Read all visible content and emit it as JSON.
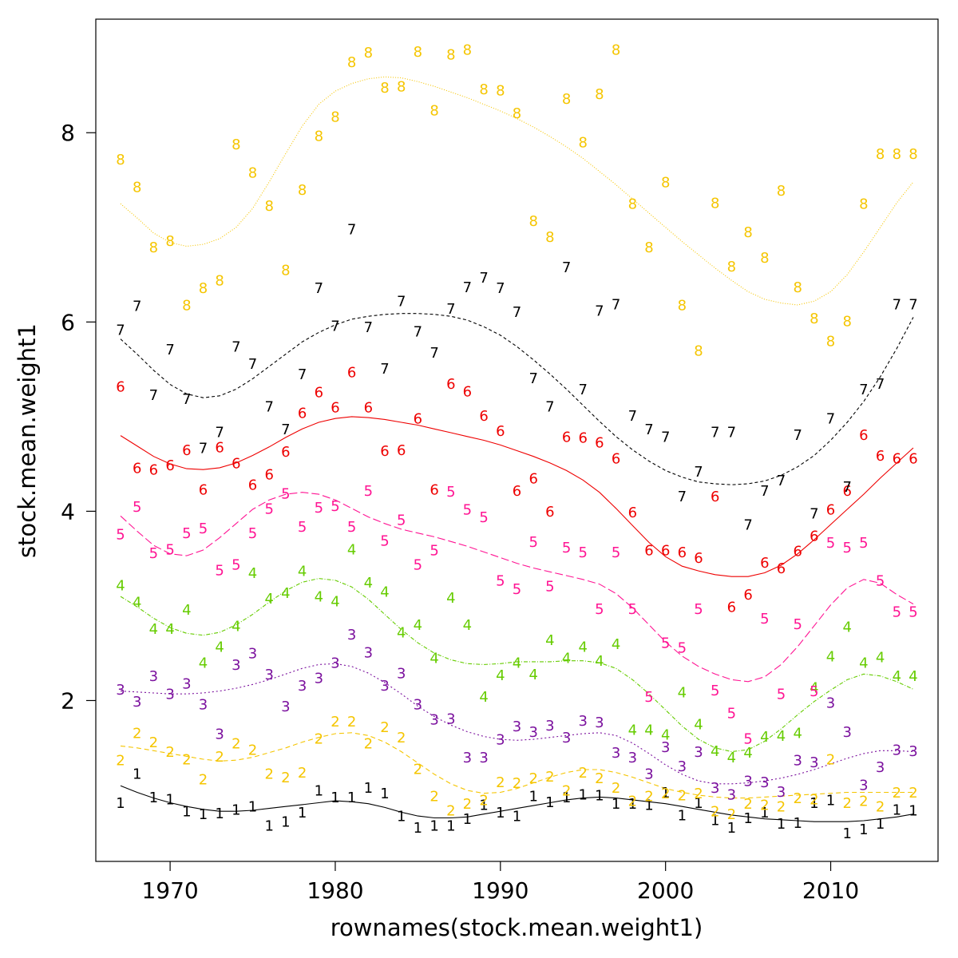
{
  "chart_data": {
    "type": "scatter",
    "xlabel": "rownames(stock.mean.weight1)",
    "ylabel": "stock.mean.weight1",
    "xlim": [
      1965.5,
      2016.5
    ],
    "ylim": [
      0.3,
      9.2
    ],
    "xticks": [
      1970,
      1980,
      1990,
      2000,
      2010
    ],
    "yticks": [
      2,
      4,
      6,
      8
    ],
    "grid": false,
    "legend": "none",
    "x": [
      1967,
      1968,
      1969,
      1970,
      1971,
      1972,
      1973,
      1974,
      1975,
      1976,
      1977,
      1978,
      1979,
      1980,
      1981,
      1982,
      1983,
      1984,
      1985,
      1986,
      1987,
      1988,
      1989,
      1990,
      1991,
      1992,
      1993,
      1994,
      1995,
      1996,
      1997,
      1998,
      1999,
      2000,
      2001,
      2002,
      2003,
      2004,
      2005,
      2006,
      2007,
      2008,
      2009,
      2010,
      2011,
      2012,
      2013,
      2014,
      2015
    ],
    "series": [
      {
        "name": "1",
        "color": "#000000",
        "dash": "",
        "values": [
          0.92,
          1.23,
          0.98,
          0.96,
          0.83,
          0.8,
          0.81,
          0.85,
          0.88,
          0.68,
          0.72,
          0.82,
          1.05,
          0.98,
          0.98,
          1.08,
          1.02,
          0.78,
          0.66,
          0.68,
          0.68,
          0.75,
          0.9,
          0.82,
          0.78,
          0.99,
          0.93,
          0.98,
          1.01,
          1.0,
          0.91,
          0.91,
          0.9,
          1.03,
          0.79,
          0.92,
          0.74,
          0.66,
          0.76,
          0.82,
          0.7,
          0.71,
          0.92,
          0.95,
          0.6,
          0.64,
          0.7,
          0.85,
          0.84
        ],
        "smooth": [
          1.1,
          1.03,
          0.97,
          0.92,
          0.88,
          0.85,
          0.83,
          0.83,
          0.84,
          0.86,
          0.88,
          0.9,
          0.92,
          0.94,
          0.93,
          0.91,
          0.87,
          0.82,
          0.78,
          0.76,
          0.76,
          0.77,
          0.8,
          0.83,
          0.86,
          0.89,
          0.92,
          0.95,
          0.97,
          0.98,
          0.97,
          0.95,
          0.93,
          0.91,
          0.88,
          0.85,
          0.82,
          0.79,
          0.77,
          0.75,
          0.74,
          0.73,
          0.72,
          0.72,
          0.72,
          0.73,
          0.75,
          0.77,
          0.8
        ]
      },
      {
        "name": "2",
        "color": "#f5c500",
        "dash": "6,4",
        "values": [
          1.37,
          1.66,
          1.56,
          1.46,
          1.38,
          1.17,
          1.41,
          1.55,
          1.48,
          1.23,
          1.19,
          1.24,
          1.6,
          1.78,
          1.78,
          1.55,
          1.72,
          1.61,
          1.28,
          0.99,
          0.84,
          0.91,
          0.95,
          1.14,
          1.13,
          1.18,
          1.2,
          1.05,
          1.24,
          1.18,
          1.08,
          0.94,
          0.99,
          1.02,
          1.0,
          1.02,
          0.83,
          0.8,
          0.91,
          0.9,
          0.88,
          0.97,
          0.96,
          1.38,
          0.92,
          0.94,
          0.88,
          1.03,
          1.03
        ],
        "smooth": [
          1.52,
          1.5,
          1.47,
          1.44,
          1.41,
          1.38,
          1.36,
          1.37,
          1.4,
          1.45,
          1.5,
          1.56,
          1.61,
          1.65,
          1.66,
          1.63,
          1.56,
          1.46,
          1.34,
          1.22,
          1.12,
          1.05,
          1.02,
          1.03,
          1.07,
          1.13,
          1.19,
          1.24,
          1.27,
          1.27,
          1.24,
          1.19,
          1.13,
          1.07,
          1.03,
          1.0,
          0.98,
          0.97,
          0.97,
          0.98,
          0.99,
          1.0,
          1.01,
          1.02,
          1.03,
          1.03,
          1.03,
          1.03,
          1.03
        ]
      },
      {
        "name": "3",
        "color": "#7b119e",
        "dash": "2,3",
        "values": [
          2.12,
          1.99,
          2.26,
          2.07,
          2.18,
          1.96,
          1.65,
          2.38,
          2.5,
          2.28,
          1.94,
          2.16,
          2.24,
          2.4,
          2.7,
          2.51,
          2.16,
          2.29,
          1.96,
          1.8,
          1.81,
          1.4,
          1.4,
          1.59,
          1.73,
          1.67,
          1.74,
          1.61,
          1.79,
          1.77,
          1.45,
          1.4,
          1.23,
          1.51,
          1.31,
          1.46,
          1.08,
          1.01,
          1.15,
          1.14,
          1.04,
          1.37,
          1.35,
          1.98,
          1.67,
          1.11,
          1.3,
          1.48,
          1.47
        ],
        "smooth": [
          2.1,
          2.09,
          2.08,
          2.07,
          2.07,
          2.08,
          2.1,
          2.13,
          2.17,
          2.22,
          2.28,
          2.34,
          2.38,
          2.39,
          2.36,
          2.29,
          2.19,
          2.07,
          1.94,
          1.83,
          1.74,
          1.67,
          1.62,
          1.59,
          1.58,
          1.59,
          1.61,
          1.63,
          1.65,
          1.66,
          1.63,
          1.55,
          1.44,
          1.32,
          1.22,
          1.15,
          1.12,
          1.12,
          1.13,
          1.15,
          1.18,
          1.22,
          1.27,
          1.33,
          1.39,
          1.44,
          1.47,
          1.47,
          1.46
        ]
      },
      {
        "name": "4",
        "color": "#66cc00",
        "dash": "5,2,1,2",
        "values": [
          3.22,
          3.04,
          2.76,
          2.76,
          2.96,
          2.4,
          2.57,
          2.79,
          3.35,
          3.08,
          3.14,
          3.37,
          3.1,
          3.05,
          3.6,
          3.25,
          3.15,
          2.72,
          2.8,
          2.45,
          3.09,
          2.8,
          2.04,
          2.27,
          2.4,
          2.28,
          2.64,
          2.45,
          2.57,
          2.42,
          2.6,
          1.69,
          1.69,
          1.64,
          2.09,
          1.75,
          1.47,
          1.4,
          1.45,
          1.62,
          1.63,
          1.66,
          2.14,
          2.47,
          2.78,
          2.4,
          2.46,
          2.26,
          2.26
        ],
        "smooth": [
          3.1,
          2.99,
          2.87,
          2.77,
          2.71,
          2.69,
          2.72,
          2.8,
          2.91,
          3.04,
          3.16,
          3.25,
          3.29,
          3.27,
          3.2,
          3.07,
          2.91,
          2.75,
          2.61,
          2.5,
          2.43,
          2.39,
          2.38,
          2.39,
          2.41,
          2.41,
          2.41,
          2.42,
          2.42,
          2.4,
          2.34,
          2.22,
          2.07,
          1.9,
          1.73,
          1.59,
          1.5,
          1.46,
          1.48,
          1.57,
          1.7,
          1.85,
          1.99,
          2.11,
          2.22,
          2.28,
          2.26,
          2.2,
          2.12
        ]
      },
      {
        "name": "5",
        "color": "#ff1493",
        "dash": "10,4",
        "values": [
          3.76,
          4.05,
          3.56,
          3.6,
          3.77,
          3.82,
          3.38,
          3.44,
          3.77,
          4.03,
          4.19,
          3.84,
          4.04,
          4.06,
          3.84,
          4.22,
          3.69,
          3.91,
          3.44,
          3.59,
          4.21,
          4.02,
          3.94,
          3.27,
          3.18,
          3.68,
          3.21,
          3.62,
          3.57,
          2.97,
          3.57,
          2.97,
          2.04,
          2.61,
          2.56,
          2.97,
          2.11,
          1.87,
          1.6,
          2.87,
          2.07,
          2.81,
          2.1,
          3.67,
          3.62,
          3.67,
          3.27,
          2.94,
          2.94
        ],
        "smooth": [
          3.95,
          3.79,
          3.64,
          3.55,
          3.53,
          3.59,
          3.72,
          3.87,
          4.02,
          4.12,
          4.18,
          4.2,
          4.18,
          4.12,
          4.03,
          3.94,
          3.87,
          3.81,
          3.77,
          3.73,
          3.68,
          3.63,
          3.57,
          3.51,
          3.45,
          3.4,
          3.36,
          3.32,
          3.28,
          3.23,
          3.13,
          2.98,
          2.8,
          2.62,
          2.47,
          2.36,
          2.28,
          2.22,
          2.2,
          2.25,
          2.38,
          2.57,
          2.79,
          3.01,
          3.19,
          3.28,
          3.24,
          3.12,
          3.02
        ]
      },
      {
        "name": "6",
        "color": "#ee0000",
        "dash": "",
        "values": [
          5.32,
          4.46,
          4.44,
          4.49,
          4.65,
          4.23,
          4.68,
          4.51,
          4.28,
          4.39,
          4.63,
          5.04,
          5.26,
          5.1,
          5.47,
          5.1,
          4.64,
          4.65,
          4.98,
          4.23,
          5.35,
          5.27,
          5.01,
          4.85,
          4.22,
          4.35,
          4.0,
          4.79,
          4.78,
          4.73,
          4.56,
          3.99,
          3.59,
          3.59,
          3.57,
          3.51,
          4.16,
          2.99,
          3.12,
          3.46,
          3.4,
          3.58,
          3.74,
          4.02,
          4.22,
          4.81,
          4.59,
          4.56,
          4.56
        ],
        "smooth": [
          4.8,
          4.69,
          4.58,
          4.5,
          4.45,
          4.44,
          4.46,
          4.51,
          4.59,
          4.68,
          4.78,
          4.87,
          4.94,
          4.98,
          5.0,
          4.99,
          4.97,
          4.94,
          4.91,
          4.87,
          4.83,
          4.79,
          4.75,
          4.7,
          4.64,
          4.58,
          4.51,
          4.43,
          4.33,
          4.2,
          4.03,
          3.85,
          3.67,
          3.52,
          3.42,
          3.37,
          3.33,
          3.31,
          3.31,
          3.35,
          3.43,
          3.55,
          3.7,
          3.86,
          4.02,
          4.18,
          4.35,
          4.51,
          4.67
        ]
      },
      {
        "name": "7",
        "color": "#000000",
        "dash": "4,3",
        "values": [
          5.92,
          6.17,
          5.23,
          5.71,
          5.19,
          4.67,
          4.84,
          5.74,
          5.56,
          5.11,
          4.87,
          5.45,
          6.36,
          5.96,
          6.98,
          5.95,
          5.51,
          6.22,
          5.9,
          5.68,
          6.14,
          6.37,
          6.47,
          6.36,
          6.11,
          5.41,
          5.11,
          6.58,
          5.29,
          6.12,
          6.19,
          5.01,
          4.87,
          4.79,
          4.16,
          4.42,
          4.84,
          4.84,
          3.86,
          4.22,
          4.33,
          4.81,
          3.98,
          4.98,
          4.26,
          5.29,
          5.35,
          6.19,
          6.19
        ],
        "smooth": [
          5.82,
          5.66,
          5.49,
          5.34,
          5.24,
          5.2,
          5.22,
          5.29,
          5.4,
          5.53,
          5.66,
          5.79,
          5.89,
          5.97,
          6.03,
          6.06,
          6.08,
          6.09,
          6.09,
          6.08,
          6.06,
          6.02,
          5.95,
          5.86,
          5.74,
          5.6,
          5.45,
          5.29,
          5.12,
          4.95,
          4.79,
          4.65,
          4.53,
          4.43,
          4.36,
          4.31,
          4.29,
          4.28,
          4.29,
          4.32,
          4.38,
          4.47,
          4.59,
          4.75,
          4.94,
          5.16,
          5.42,
          5.72,
          6.05
        ]
      },
      {
        "name": "8",
        "color": "#f5c500",
        "dash": "1,2",
        "values": [
          7.72,
          7.43,
          6.79,
          6.86,
          6.18,
          6.36,
          6.44,
          7.88,
          7.58,
          7.23,
          6.55,
          7.4,
          7.97,
          8.17,
          8.75,
          8.85,
          8.48,
          8.49,
          8.86,
          8.24,
          8.83,
          8.88,
          8.46,
          8.45,
          8.21,
          7.07,
          6.9,
          8.36,
          7.9,
          8.41,
          8.88,
          7.25,
          6.79,
          7.48,
          6.18,
          5.7,
          7.26,
          6.59,
          6.95,
          6.68,
          7.39,
          6.37,
          6.04,
          5.8,
          6.01,
          7.25,
          7.78,
          7.78,
          7.78
        ],
        "smooth": [
          7.25,
          7.1,
          6.94,
          6.84,
          6.8,
          6.82,
          6.88,
          7.0,
          7.2,
          7.48,
          7.78,
          8.07,
          8.3,
          8.44,
          8.52,
          8.57,
          8.59,
          8.58,
          8.54,
          8.49,
          8.43,
          8.37,
          8.3,
          8.23,
          8.15,
          8.06,
          7.96,
          7.85,
          7.73,
          7.59,
          7.45,
          7.3,
          7.15,
          7.0,
          6.85,
          6.71,
          6.57,
          6.44,
          6.32,
          6.24,
          6.2,
          6.18,
          6.22,
          6.32,
          6.5,
          6.74,
          7.0,
          7.26,
          7.48
        ]
      }
    ]
  }
}
